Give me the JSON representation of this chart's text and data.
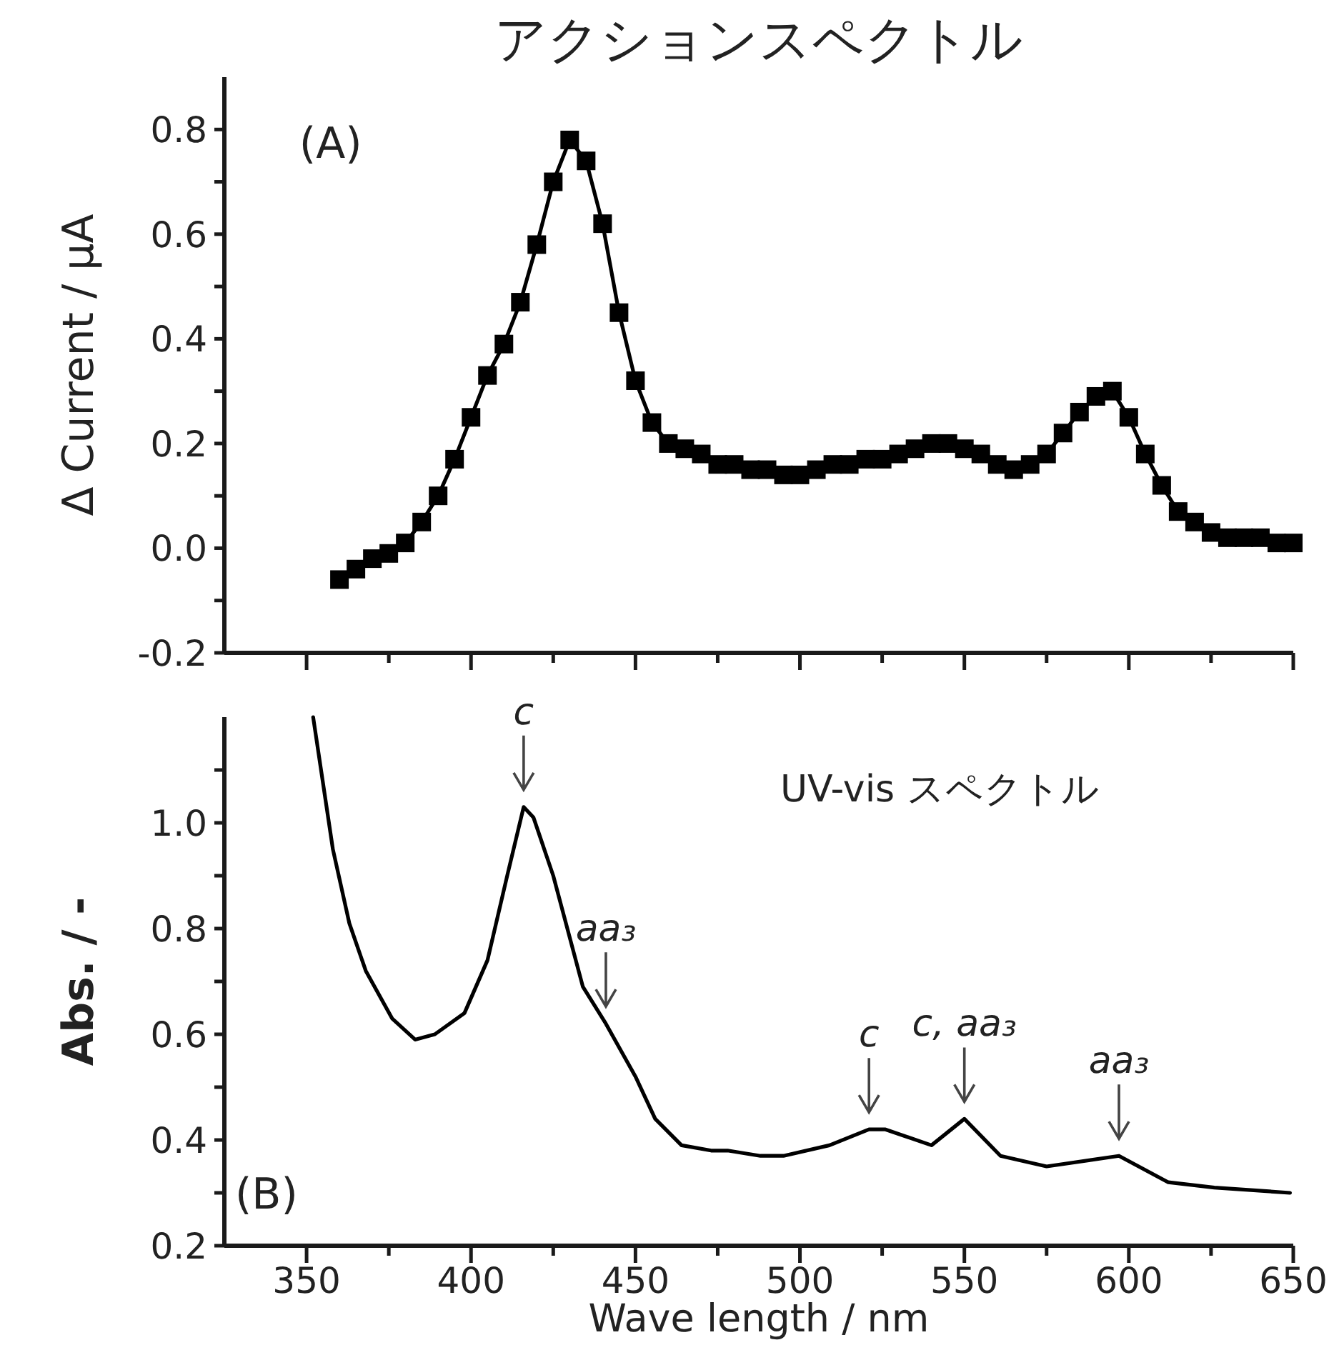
{
  "chart_data": [
    {
      "type": "line",
      "title": "アクションスペクトル",
      "ylabel": "Δ Current / μA",
      "xlim": [
        325,
        650
      ],
      "ylim": [
        -0.2,
        0.9
      ],
      "xticks": [
        350,
        {
          "value": 375,
          "label": null
        },
        400,
        {
          "value": 425,
          "label": null
        },
        450,
        {
          "value": 475,
          "label": null
        },
        500,
        {
          "value": 525,
          "label": null
        },
        550,
        {
          "value": 575,
          "label": null
        },
        600,
        {
          "value": 625,
          "label": null
        },
        650
      ],
      "yticks": [
        -0.2,
        {
          "value": -0.1,
          "label": null
        },
        {
          "value": 0,
          "label": "0.0"
        },
        {
          "value": 0.1,
          "label": null
        },
        0.2,
        {
          "value": 0.3,
          "label": null
        },
        0.4,
        {
          "value": 0.5,
          "label": null
        },
        0.6,
        {
          "value": 0.7,
          "label": null
        },
        0.8
      ],
      "tick_labels": "y",
      "marker": "square",
      "line_style": "solid",
      "x": [
        360,
        365,
        370,
        375,
        380,
        385,
        390,
        395,
        400,
        405,
        410,
        415,
        420,
        425,
        430,
        435,
        440,
        445,
        450,
        455,
        460,
        465,
        470,
        475,
        480,
        485,
        490,
        495,
        500,
        505,
        510,
        515,
        520,
        525,
        530,
        535,
        540,
        545,
        550,
        555,
        560,
        565,
        570,
        575,
        580,
        585,
        590,
        595,
        600,
        605,
        610,
        615,
        620,
        625,
        630,
        635,
        640,
        645,
        650
      ],
      "series": [
        {
          "color": "#000000",
          "values": [
            -0.06,
            -0.04,
            -0.02,
            -0.01,
            0.01,
            0.05,
            0.1,
            0.17,
            0.25,
            0.33,
            0.39,
            0.47,
            0.58,
            0.7,
            0.78,
            0.74,
            0.62,
            0.45,
            0.32,
            0.24,
            0.2,
            0.19,
            0.18,
            0.16,
            0.16,
            0.15,
            0.15,
            0.14,
            0.14,
            0.15,
            0.16,
            0.16,
            0.17,
            0.17,
            0.18,
            0.19,
            0.2,
            0.2,
            0.19,
            0.18,
            0.16,
            0.15,
            0.16,
            0.18,
            0.22,
            0.26,
            0.29,
            0.3,
            0.25,
            0.18,
            0.12,
            0.07,
            0.05,
            0.03,
            0.02,
            0.02,
            0.02,
            0.01,
            0.01
          ]
        }
      ],
      "annotations": [
        "(A)"
      ]
    },
    {
      "type": "line",
      "xlabel": "Wave length / nm",
      "ylabel": "Abs. / -",
      "xlim": [
        325,
        650
      ],
      "ylim": [
        0.2,
        1.2
      ],
      "xticks": [
        350,
        {
          "value": 375,
          "label": null
        },
        400,
        {
          "value": 425,
          "label": null
        },
        450,
        {
          "value": 475,
          "label": null
        },
        500,
        {
          "value": 525,
          "label": null
        },
        550,
        {
          "value": 575,
          "label": null
        },
        600,
        {
          "value": 625,
          "label": null
        },
        650
      ],
      "yticks": [
        0.2,
        {
          "value": 0.3,
          "label": null
        },
        0.4,
        {
          "value": 0.5,
          "label": null
        },
        0.6,
        {
          "value": 0.7,
          "label": null
        },
        0.8,
        {
          "value": 0.9,
          "label": null
        },
        {
          "value": 1,
          "label": "1.0"
        },
        {
          "value": 1.1,
          "label": null
        }
      ],
      "line_style": "solid",
      "x": [
        352,
        358,
        363,
        368,
        376,
        383,
        389,
        398,
        405,
        411,
        416,
        419,
        425,
        434,
        441,
        450,
        456,
        464,
        473,
        478,
        488,
        495,
        509,
        521,
        526,
        540,
        550,
        561,
        575,
        597,
        612,
        626,
        649
      ],
      "series": [
        {
          "color": "#000000",
          "values": [
            1.2,
            0.95,
            0.81,
            0.72,
            0.63,
            0.59,
            0.6,
            0.64,
            0.74,
            0.9,
            1.03,
            1.01,
            0.9,
            0.69,
            0.62,
            0.52,
            0.44,
            0.39,
            0.38,
            0.38,
            0.37,
            0.37,
            0.39,
            0.42,
            0.42,
            0.39,
            0.44,
            0.37,
            0.35,
            0.37,
            0.32,
            0.31,
            0.3
          ]
        }
      ],
      "annotations": [
        "UV-vis スペクトル",
        "(B)",
        {
          "text": "c",
          "x": 416,
          "y": 1.03
        },
        {
          "text": "aa₃",
          "x": 441,
          "y": 0.62
        },
        {
          "text": "c",
          "x": 521,
          "y": 0.42
        },
        {
          "text": "c, aa₃",
          "x": 550,
          "y": 0.44
        },
        {
          "text": "aa₃",
          "x": 597,
          "y": 0.37
        }
      ]
    }
  ]
}
